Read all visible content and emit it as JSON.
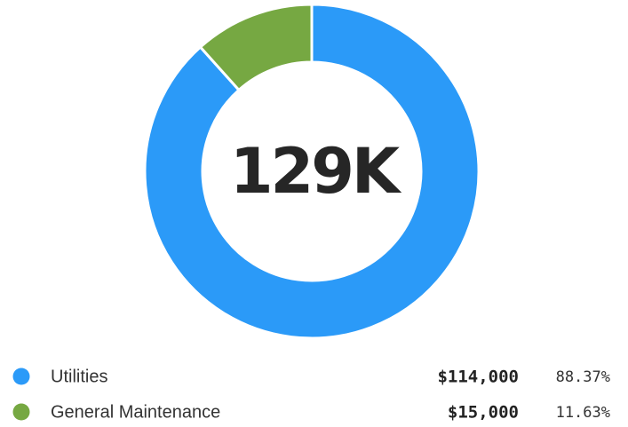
{
  "chart_data": {
    "type": "donut",
    "center_label": "129K",
    "categories": [
      "Utilities",
      "General Maintenance"
    ],
    "series": [
      {
        "values": [
          114000,
          15000
        ],
        "value_labels": [
          "$114,000",
          "$15,000"
        ],
        "colors": [
          "#2b9af8",
          "#76a842"
        ]
      }
    ],
    "percents": [
      88.37,
      11.63
    ],
    "percent_labels": [
      "88.37%",
      "11.63%"
    ]
  }
}
